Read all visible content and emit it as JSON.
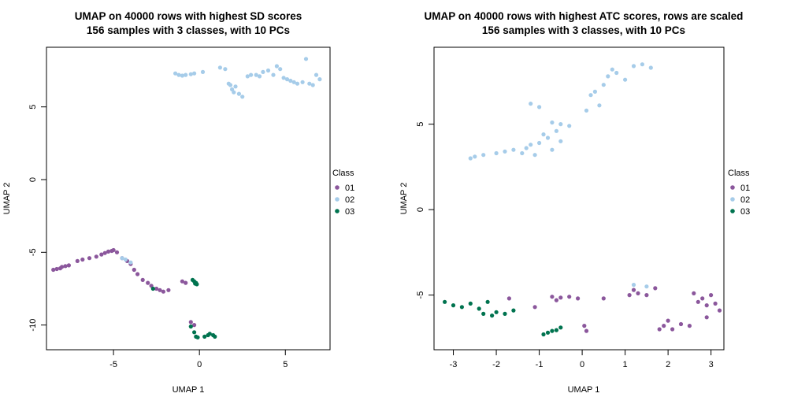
{
  "chart_data": [
    {
      "type": "scatter",
      "title_line1": "UMAP on 40000 rows with highest SD scores",
      "title_line2": "156 samples with 3 classes, with 10 PCs",
      "xlabel": "UMAP 1",
      "ylabel": "UMAP 2",
      "xticks": [
        "-5",
        "0",
        "5"
      ],
      "yticks": [
        "-10",
        "-5",
        "0",
        "5"
      ],
      "xlim": [
        -8.9,
        7.6
      ],
      "ylim": [
        -11.7,
        9.1
      ],
      "grid": false,
      "legend": {
        "title": "Class",
        "position": "right"
      },
      "series": [
        {
          "name": "01",
          "color": "#8b579c",
          "points": [
            [
              -8.5,
              -6.2
            ],
            [
              -8.3,
              -6.15
            ],
            [
              -8.1,
              -6.1
            ],
            [
              -8.0,
              -6.0
            ],
            [
              -7.8,
              -5.95
            ],
            [
              -7.6,
              -5.9
            ],
            [
              -7.1,
              -5.6
            ],
            [
              -6.8,
              -5.5
            ],
            [
              -6.4,
              -5.4
            ],
            [
              -6.0,
              -5.3
            ],
            [
              -5.7,
              -5.15
            ],
            [
              -5.5,
              -5.05
            ],
            [
              -5.3,
              -4.95
            ],
            [
              -5.1,
              -4.9
            ],
            [
              -5.0,
              -4.85
            ],
            [
              -4.8,
              -5.0
            ],
            [
              -4.5,
              -5.4
            ],
            [
              -4.2,
              -5.6
            ],
            [
              -4.0,
              -5.8
            ],
            [
              -3.8,
              -6.2
            ],
            [
              -3.6,
              -6.5
            ],
            [
              -3.3,
              -6.9
            ],
            [
              -3.0,
              -7.1
            ],
            [
              -2.8,
              -7.3
            ],
            [
              -2.5,
              -7.5
            ],
            [
              -2.3,
              -7.6
            ],
            [
              -2.1,
              -7.7
            ],
            [
              -1.8,
              -7.6
            ],
            [
              -1.0,
              -7.0
            ],
            [
              -0.8,
              -7.1
            ],
            [
              -0.5,
              -9.8
            ],
            [
              -0.3,
              -10.0
            ]
          ]
        },
        {
          "name": "02",
          "color": "#a6cce9",
          "points": [
            [
              -1.4,
              7.3
            ],
            [
              -1.2,
              7.2
            ],
            [
              -1.0,
              7.15
            ],
            [
              -0.8,
              7.2
            ],
            [
              -0.5,
              7.25
            ],
            [
              -0.3,
              7.3
            ],
            [
              0.2,
              7.4
            ],
            [
              1.2,
              7.7
            ],
            [
              1.5,
              7.6
            ],
            [
              1.7,
              6.6
            ],
            [
              1.8,
              6.5
            ],
            [
              1.9,
              6.2
            ],
            [
              2.0,
              6.0
            ],
            [
              2.1,
              6.4
            ],
            [
              2.3,
              5.9
            ],
            [
              2.5,
              5.7
            ],
            [
              2.8,
              7.1
            ],
            [
              3.0,
              7.2
            ],
            [
              3.3,
              7.2
            ],
            [
              3.5,
              7.1
            ],
            [
              3.7,
              7.4
            ],
            [
              4.0,
              7.5
            ],
            [
              4.3,
              7.2
            ],
            [
              4.5,
              7.8
            ],
            [
              4.7,
              7.6
            ],
            [
              4.9,
              7.0
            ],
            [
              5.1,
              6.9
            ],
            [
              5.3,
              6.8
            ],
            [
              5.5,
              6.7
            ],
            [
              5.7,
              6.6
            ],
            [
              6.0,
              6.7
            ],
            [
              6.2,
              8.3
            ],
            [
              6.4,
              6.6
            ],
            [
              6.6,
              6.5
            ],
            [
              6.8,
              7.2
            ],
            [
              7.0,
              6.9
            ],
            [
              -4.5,
              -5.4
            ],
            [
              -4.3,
              -5.5
            ],
            [
              -4.0,
              -5.7
            ]
          ]
        },
        {
          "name": "03",
          "color": "#00734f",
          "points": [
            [
              -2.7,
              -7.5
            ],
            [
              -0.4,
              -6.9
            ],
            [
              -0.3,
              -7.0
            ],
            [
              -0.2,
              -7.1
            ],
            [
              -0.15,
              -7.2
            ],
            [
              -0.25,
              -7.15
            ],
            [
              -0.5,
              -10.1
            ],
            [
              -0.3,
              -10.5
            ],
            [
              -0.2,
              -10.8
            ],
            [
              -0.1,
              -10.85
            ],
            [
              0.3,
              -10.8
            ],
            [
              0.5,
              -10.7
            ],
            [
              0.6,
              -10.6
            ],
            [
              0.8,
              -10.7
            ],
            [
              0.9,
              -10.8
            ]
          ]
        }
      ]
    },
    {
      "type": "scatter",
      "title_line1": "UMAP on 40000 rows with highest ATC scores, rows are scaled",
      "title_line2": "156 samples with 3 classes, with 10 PCs",
      "xlabel": "UMAP 1",
      "ylabel": "UMAP 2",
      "xticks": [
        "-3",
        "-2",
        "-1",
        "0",
        "1",
        "2",
        "3"
      ],
      "yticks": [
        "-5",
        "0",
        "5"
      ],
      "xlim": [
        -3.45,
        3.3
      ],
      "ylim": [
        -8.2,
        9.5
      ],
      "grid": false,
      "legend": {
        "title": "Class",
        "position": "right"
      },
      "series": [
        {
          "name": "01",
          "color": "#8b579c",
          "points": [
            [
              -1.7,
              -5.2
            ],
            [
              -1.1,
              -5.7
            ],
            [
              -0.7,
              -5.1
            ],
            [
              -0.6,
              -5.3
            ],
            [
              -0.5,
              -5.15
            ],
            [
              -0.3,
              -5.1
            ],
            [
              -0.1,
              -5.2
            ],
            [
              0.5,
              -5.2
            ],
            [
              0.1,
              -7.1
            ],
            [
              0.05,
              -6.8
            ],
            [
              1.1,
              -5.0
            ],
            [
              1.2,
              -4.7
            ],
            [
              1.3,
              -4.9
            ],
            [
              1.5,
              -5.0
            ],
            [
              1.7,
              -4.6
            ],
            [
              1.8,
              -7.0
            ],
            [
              1.9,
              -6.8
            ],
            [
              2.0,
              -6.5
            ],
            [
              2.1,
              -7.0
            ],
            [
              2.3,
              -6.7
            ],
            [
              2.5,
              -6.8
            ],
            [
              2.6,
              -4.9
            ],
            [
              2.7,
              -5.4
            ],
            [
              2.8,
              -5.2
            ],
            [
              2.9,
              -5.6
            ],
            [
              3.0,
              -5.0
            ],
            [
              3.1,
              -5.5
            ],
            [
              3.2,
              -5.9
            ],
            [
              2.9,
              -6.3
            ]
          ]
        },
        {
          "name": "02",
          "color": "#a6cce9",
          "points": [
            [
              -2.6,
              3.0
            ],
            [
              -2.5,
              3.1
            ],
            [
              -2.3,
              3.2
            ],
            [
              -2.0,
              3.3
            ],
            [
              -1.8,
              3.4
            ],
            [
              -1.6,
              3.5
            ],
            [
              -1.4,
              3.3
            ],
            [
              -1.3,
              3.6
            ],
            [
              -1.2,
              3.8
            ],
            [
              -1.1,
              3.2
            ],
            [
              -1.0,
              3.9
            ],
            [
              -0.9,
              4.4
            ],
            [
              -0.8,
              4.2
            ],
            [
              -0.7,
              3.5
            ],
            [
              -0.6,
              4.6
            ],
            [
              -0.5,
              4.0
            ],
            [
              -0.3,
              4.9
            ],
            [
              -1.2,
              6.2
            ],
            [
              -1.0,
              6.0
            ],
            [
              -0.7,
              5.1
            ],
            [
              -0.5,
              5.0
            ],
            [
              0.1,
              5.8
            ],
            [
              0.2,
              6.7
            ],
            [
              0.3,
              6.9
            ],
            [
              0.4,
              6.1
            ],
            [
              0.5,
              7.3
            ],
            [
              0.6,
              7.8
            ],
            [
              0.7,
              8.2
            ],
            [
              0.8,
              8.0
            ],
            [
              1.0,
              7.6
            ],
            [
              1.2,
              8.4
            ],
            [
              1.4,
              8.5
            ],
            [
              1.6,
              8.3
            ],
            [
              1.2,
              -4.4
            ],
            [
              1.5,
              -4.5
            ]
          ]
        },
        {
          "name": "03",
          "color": "#00734f",
          "points": [
            [
              -3.2,
              -5.4
            ],
            [
              -3.0,
              -5.6
            ],
            [
              -2.8,
              -5.7
            ],
            [
              -2.6,
              -5.5
            ],
            [
              -2.4,
              -5.8
            ],
            [
              -2.3,
              -6.1
            ],
            [
              -2.2,
              -5.4
            ],
            [
              -2.1,
              -6.2
            ],
            [
              -2.0,
              -6.0
            ],
            [
              -1.8,
              -6.1
            ],
            [
              -1.6,
              -5.9
            ],
            [
              -0.9,
              -7.3
            ],
            [
              -0.8,
              -7.2
            ],
            [
              -0.7,
              -7.1
            ],
            [
              -0.6,
              -7.05
            ],
            [
              -0.5,
              -6.9
            ]
          ]
        }
      ]
    }
  ]
}
